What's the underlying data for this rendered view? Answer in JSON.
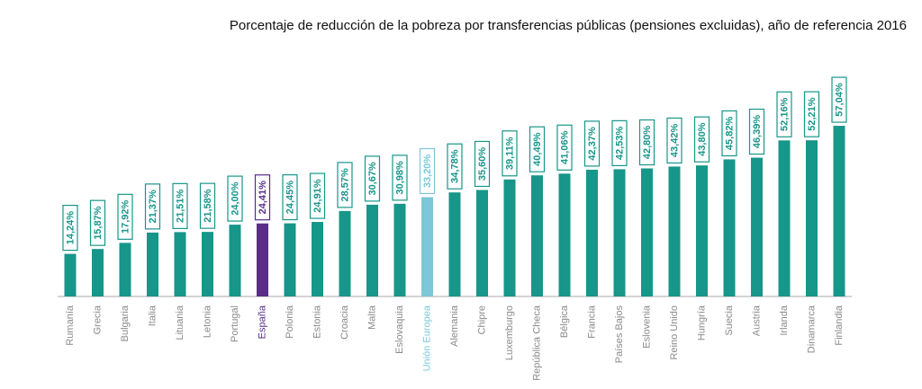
{
  "chart_data": {
    "type": "bar",
    "title": "Porcentaje de reducción de la pobreza por transferencias públicas (pensiones excluidas), año de referencia 2016",
    "categories": [
      "Rumanía",
      "Grecia",
      "Bulgaria",
      "Italia",
      "Lituania",
      "Letonia",
      "Portugal",
      "España",
      "Polonia",
      "Estonia",
      "Croacia",
      "Malta",
      "Eslovaquia",
      "Unión Europea",
      "Alemania",
      "Chipre",
      "Luxemburgo",
      "República Checa",
      "Bélgica",
      "Francia",
      "Países Bajos",
      "Eslovenia",
      "Reino Unido",
      "Hungría",
      "Suecia",
      "Austria",
      "Irlanda",
      "Dinamarca",
      "Finlandia"
    ],
    "values": [
      14.24,
      15.87,
      17.92,
      21.37,
      21.51,
      21.58,
      24.0,
      24.41,
      24.45,
      24.91,
      28.57,
      30.67,
      30.98,
      33.2,
      34.78,
      35.6,
      39.11,
      40.49,
      41.06,
      42.37,
      42.53,
      42.8,
      43.42,
      43.8,
      45.82,
      46.39,
      52.16,
      52.21,
      57.04
    ],
    "value_labels": [
      "14,24%",
      "15,87%",
      "17,92%",
      "21,37%",
      "21,51%",
      "21,58%",
      "24,00%",
      "24,41%",
      "24,45%",
      "24,91%",
      "28,57%",
      "30,67%",
      "30,98%",
      "33,20%",
      "34,78%",
      "35,60%",
      "39,11%",
      "40,49%",
      "41,06%",
      "42,37%",
      "42,53%",
      "42,80%",
      "43,42%",
      "43,80%",
      "45,82%",
      "46,39%",
      "52,16%",
      "52,21%",
      "57,04%"
    ],
    "colors": [
      "#17968a",
      "#17968a",
      "#17968a",
      "#17968a",
      "#17968a",
      "#17968a",
      "#17968a",
      "#5a2d88",
      "#17968a",
      "#17968a",
      "#17968a",
      "#17968a",
      "#17968a",
      "#7cc7d8",
      "#17968a",
      "#17968a",
      "#17968a",
      "#17968a",
      "#17968a",
      "#17968a",
      "#17968a",
      "#17968a",
      "#17968a",
      "#17968a",
      "#17968a",
      "#17968a",
      "#17968a",
      "#17968a",
      "#17968a"
    ]
  }
}
